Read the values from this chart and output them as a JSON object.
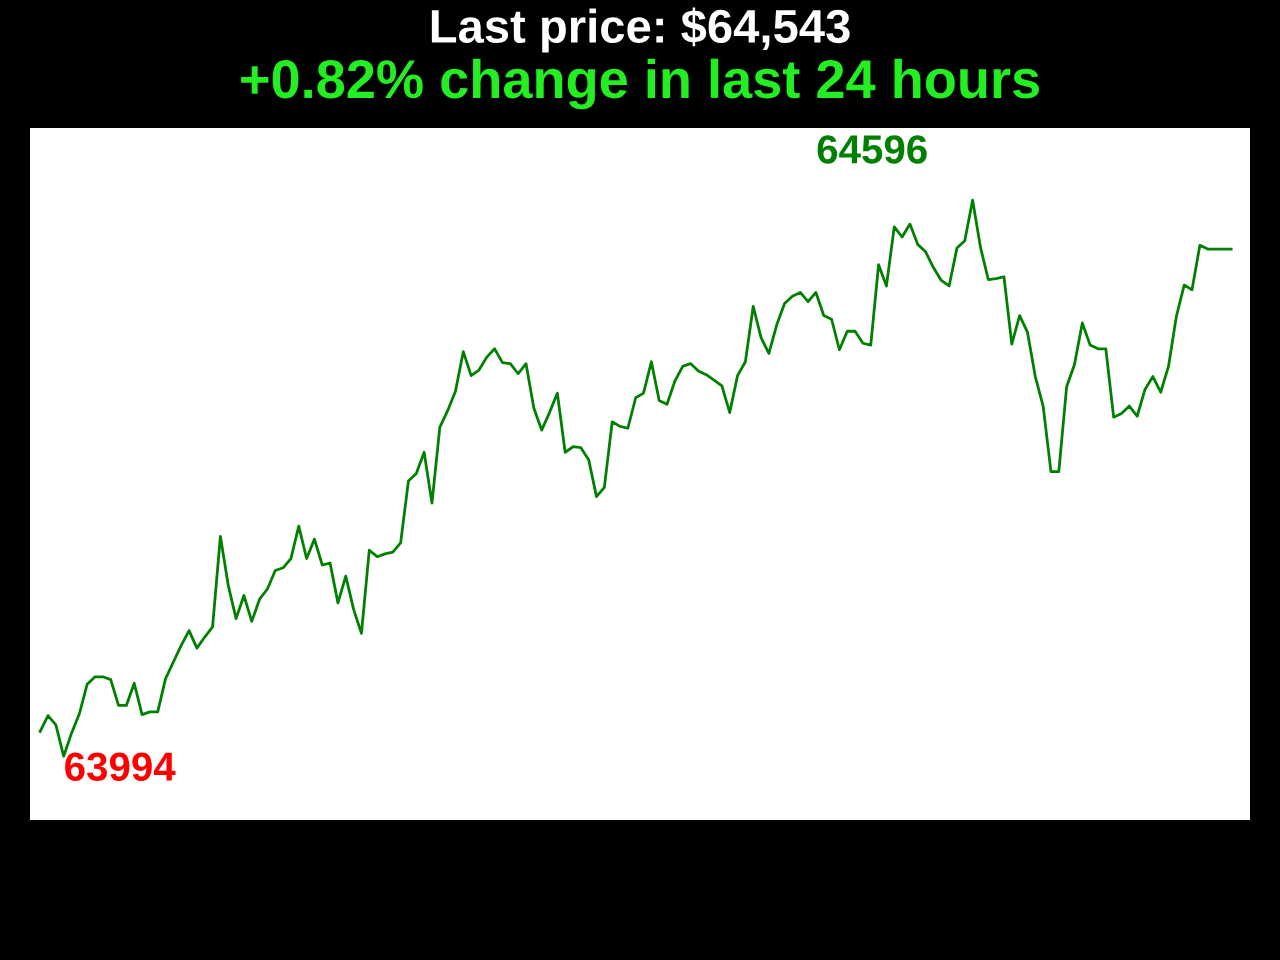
{
  "chart_data": {
    "type": "line",
    "title": "Last price: $64,543",
    "subtitle": "+0.82% change in last 24 hours",
    "categories": [
      null,
      null,
      null,
      null,
      null,
      null,
      null,
      null,
      null,
      null,
      null,
      null,
      null,
      null,
      null,
      null,
      null,
      null,
      null,
      null,
      null,
      null,
      null,
      null,
      null,
      null,
      null,
      null,
      null,
      null,
      null,
      null,
      null,
      null,
      null,
      null,
      null,
      null,
      null,
      null,
      null,
      null,
      null,
      null,
      null,
      null,
      null,
      null,
      null,
      null,
      null,
      null,
      null,
      null,
      null,
      null,
      null,
      null,
      null,
      null,
      null,
      null,
      null,
      null,
      null,
      null,
      null,
      null,
      null,
      null,
      null,
      null,
      null,
      null,
      null,
      null,
      null,
      null,
      null,
      null,
      null,
      null,
      null,
      null,
      null,
      null,
      null,
      null,
      null,
      null,
      null,
      null,
      null,
      null,
      null,
      null,
      null,
      null,
      null,
      null,
      null,
      null,
      null,
      null,
      null,
      null,
      null,
      null,
      null,
      null,
      null,
      null,
      null,
      null,
      null,
      null,
      null,
      null,
      null,
      null,
      null,
      null,
      null,
      null,
      null,
      null,
      null,
      null,
      null,
      null,
      null,
      null,
      null,
      null,
      null,
      null,
      null,
      null,
      null,
      null,
      null,
      null,
      null,
      null,
      null,
      null,
      null,
      null,
      null,
      null,
      null,
      null,
      null
    ],
    "series": [
      {
        "color": "#008000",
        "values": [
          64021,
          64038,
          64028,
          63994,
          64019,
          64040,
          64072,
          64080,
          64080,
          64077,
          64049,
          64049,
          64073,
          64039,
          64042,
          64042,
          64078,
          64096,
          64114,
          64130,
          64111,
          64123,
          64134,
          64232,
          64179,
          64143,
          64168,
          64140,
          64164,
          64175,
          64195,
          64198,
          64208,
          64243,
          64208,
          64229,
          64201,
          64203,
          64160,
          64189,
          64153,
          64127,
          64217,
          64210,
          64213,
          64215,
          64225,
          64292,
          64300,
          64323,
          64268,
          64350,
          64368,
          64389,
          64432,
          64406,
          64412,
          64426,
          64435,
          64420,
          64419,
          64408,
          64419,
          64371,
          64347,
          64366,
          64387,
          64323,
          64329,
          64328,
          64315,
          64275,
          64285,
          64356,
          64351,
          64349,
          64382,
          64387,
          64421,
          64379,
          64375,
          64400,
          64416,
          64419,
          64411,
          64407,
          64401,
          64395,
          64366,
          64406,
          64421,
          64481,
          64447,
          64430,
          64461,
          64484,
          64492,
          64496,
          64486,
          64496,
          64471,
          64467,
          64434,
          64454,
          64454,
          64441,
          64439,
          64526,
          64503,
          64567,
          64556,
          64570,
          64548,
          64540,
          64523,
          64509,
          64503,
          64544,
          64552,
          64596,
          64545,
          64510,
          64511,
          64513,
          64440,
          64471,
          64453,
          64405,
          64373,
          64302,
          64302,
          64394,
          64418,
          64463,
          64439,
          64435,
          64435,
          64361,
          64365,
          64373,
          64362,
          64391,
          64405,
          64388,
          64416,
          64470,
          64504,
          64499,
          64547,
          64543,
          64543,
          64543,
          64543
        ],
        "value_labels": [
          null,
          null,
          null,
          "63994",
          null,
          null,
          null,
          null,
          null,
          null,
          null,
          null,
          null,
          null,
          null,
          null,
          null,
          null,
          null,
          null,
          null,
          null,
          null,
          null,
          null,
          null,
          null,
          null,
          null,
          null,
          null,
          null,
          null,
          null,
          null,
          null,
          null,
          null,
          null,
          null,
          null,
          null,
          null,
          null,
          null,
          null,
          null,
          null,
          null,
          null,
          null,
          null,
          null,
          null,
          null,
          null,
          null,
          null,
          null,
          null,
          null,
          null,
          null,
          null,
          null,
          null,
          null,
          null,
          null,
          null,
          null,
          null,
          null,
          null,
          null,
          null,
          null,
          null,
          null,
          null,
          null,
          null,
          null,
          null,
          null,
          null,
          null,
          null,
          null,
          null,
          null,
          null,
          null,
          null,
          null,
          null,
          null,
          null,
          null,
          null,
          null,
          null,
          null,
          null,
          null,
          null,
          null,
          null,
          null,
          null,
          null,
          null,
          null,
          null,
          null,
          null,
          null,
          null,
          null,
          "64596",
          null,
          null,
          null,
          null,
          null,
          null,
          null,
          null,
          null,
          null,
          null,
          null,
          null,
          null,
          null,
          null,
          null,
          null,
          null,
          null,
          null,
          null,
          null,
          null,
          null,
          null,
          null,
          null,
          null,
          null,
          null,
          null,
          null
        ]
      }
    ],
    "ylim": [
      63925,
      64674
    ]
  }
}
